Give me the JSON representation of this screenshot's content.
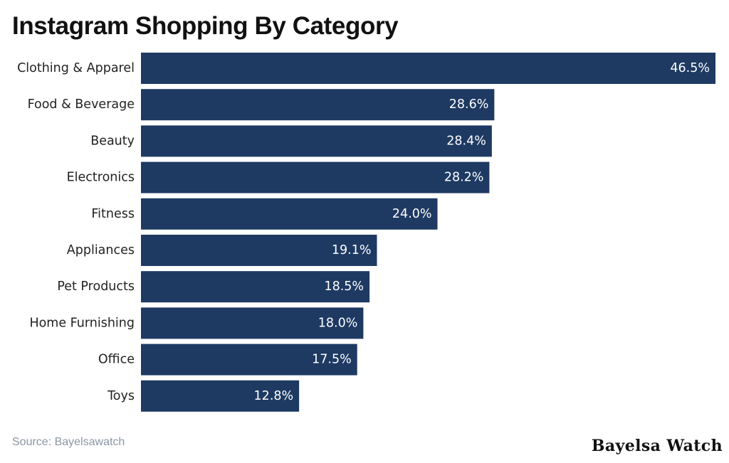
{
  "colors": {
    "bar": "#1e3a63",
    "category_text": "#222222",
    "value_text": "#ffffff",
    "source_text": "#8a96a3"
  },
  "chart_data": {
    "type": "bar",
    "orientation": "horizontal",
    "title": "Instagram Shopping By Category",
    "categories": [
      "Clothing & Apparel",
      "Food & Beverage",
      "Beauty",
      "Electronics",
      "Fitness",
      "Appliances",
      "Pet Products",
      "Home Furnishing",
      "Office",
      "Toys"
    ],
    "values": [
      46.5,
      28.6,
      28.4,
      28.2,
      24.0,
      19.1,
      18.5,
      18.0,
      17.5,
      12.8
    ],
    "value_labels": [
      "46.5%",
      "28.6%",
      "28.4%",
      "28.2%",
      "24.0%",
      "19.1%",
      "18.5%",
      "18.0%",
      "17.5%",
      "12.8%"
    ],
    "unit": "%",
    "xlim": [
      0,
      46.5
    ],
    "grid": false,
    "legend": "none"
  },
  "footer": {
    "source": "Source: Bayelsawatch",
    "brand": "Bayelsa Watch"
  }
}
